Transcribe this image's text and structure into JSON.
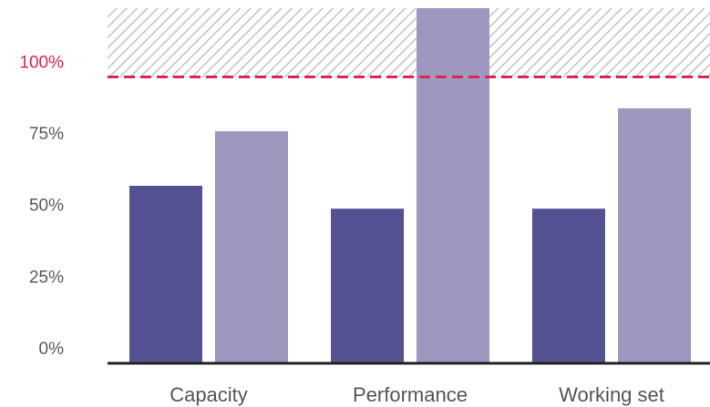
{
  "chart_data": {
    "type": "bar",
    "categories": [
      "Capacity",
      "Performance",
      "Working set"
    ],
    "series": [
      {
        "values": [
          62,
          54,
          54
        ],
        "color": "#555293"
      },
      {
        "values": [
          81,
          124,
          89
        ],
        "color": "#9e97bf"
      }
    ],
    "y_ticks": [
      {
        "value": 0,
        "label": "0%"
      },
      {
        "value": 25,
        "label": "25%"
      },
      {
        "value": 50,
        "label": "50%"
      },
      {
        "value": 75,
        "label": "75%"
      },
      {
        "value": 100,
        "label": "100%"
      }
    ],
    "ylim": [
      0,
      124
    ],
    "limit_line": {
      "value": 100,
      "color": "#e0234e",
      "style": "dashed"
    },
    "over_limit_region": {
      "from": 100,
      "to": 124,
      "pattern": "diagonal-hatch"
    },
    "grid": false,
    "legend": "none",
    "title": "",
    "xlabel": "",
    "ylabel": ""
  }
}
